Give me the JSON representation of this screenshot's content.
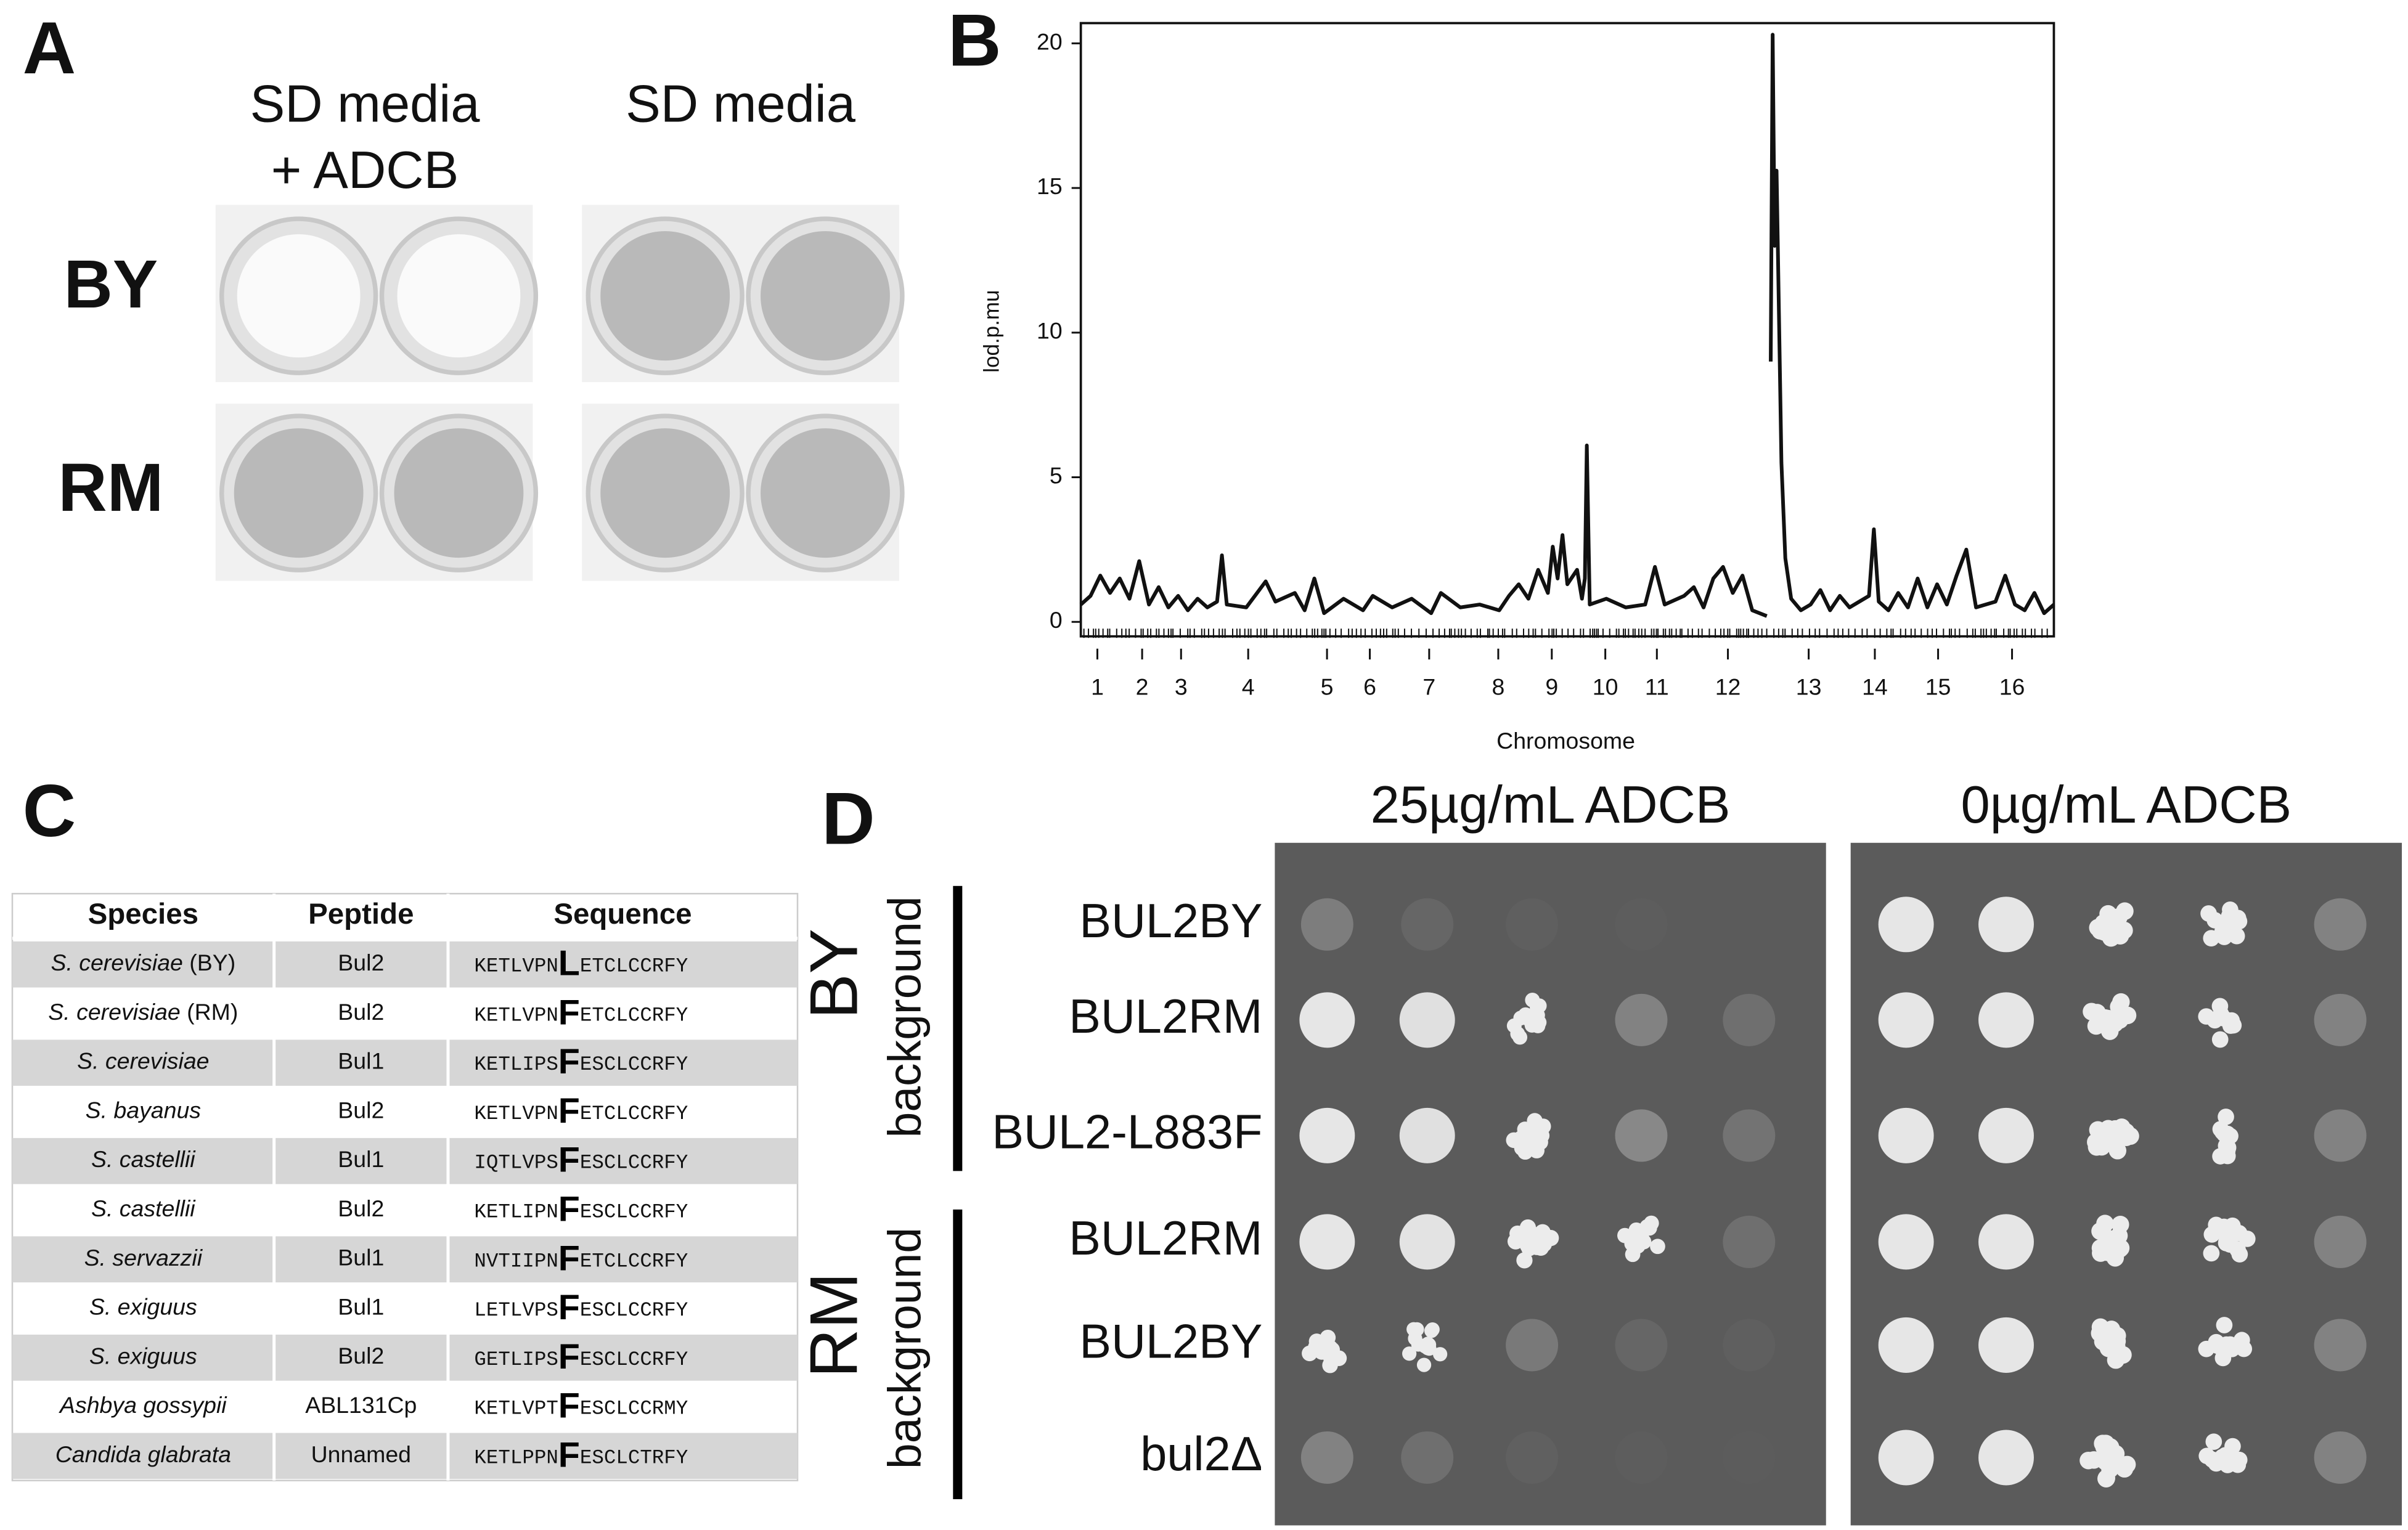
{
  "panel_a": {
    "letter": "A",
    "conditions": [
      {
        "lines": [
          "SD media",
          "+ ADCB"
        ]
      },
      {
        "lines": [
          "SD media"
        ]
      }
    ],
    "strains": [
      "BY",
      "RM"
    ]
  },
  "chart_data": {
    "type": "line",
    "panel_letter": "B",
    "x_label": "Chromosome",
    "y_label": "lod.p.mu",
    "x": [
      0,
      1,
      2,
      3,
      4,
      5,
      6,
      7,
      8,
      9,
      10,
      11,
      12,
      13,
      14,
      14.5,
      15,
      17,
      19,
      20,
      22,
      23,
      24,
      25,
      27,
      29,
      30,
      32,
      34,
      36,
      37,
      39,
      41,
      43,
      44,
      45,
      46,
      47,
      48,
      48.5,
      49,
      49.5,
      50,
      51,
      51.5,
      51.8,
      52,
      52.3,
      54,
      56,
      58,
      59,
      60,
      62,
      63,
      64,
      65,
      66,
      67,
      68,
      69,
      70.5,
      null,
      70.9,
      71.1,
      71.3,
      71.5,
      72.0,
      72.4,
      73.0,
      74,
      75,
      76,
      77,
      78,
      79,
      80,
      81,
      81.5,
      82,
      83,
      84,
      85,
      86,
      87,
      88,
      89,
      90,
      91,
      92,
      94,
      95,
      96,
      97,
      98,
      99,
      100
    ],
    "series": [
      {
        "color": "#111111",
        "values": [
          0.6,
          0.9,
          1.6,
          1.0,
          1.5,
          0.8,
          2.1,
          0.6,
          1.2,
          0.5,
          0.9,
          0.4,
          0.8,
          0.5,
          0.7,
          2.3,
          0.6,
          0.5,
          1.4,
          0.7,
          1.0,
          0.4,
          1.5,
          0.3,
          0.8,
          0.4,
          0.9,
          0.5,
          0.8,
          0.3,
          1.0,
          0.5,
          0.6,
          0.4,
          0.9,
          1.3,
          0.8,
          1.8,
          1.0,
          2.6,
          1.5,
          3.0,
          1.3,
          1.8,
          0.8,
          1.5,
          6.1,
          0.6,
          0.8,
          0.5,
          0.6,
          1.9,
          0.6,
          0.9,
          1.2,
          0.5,
          1.5,
          1.9,
          1.0,
          1.6,
          0.4,
          0.2,
          null,
          9.0,
          20.3,
          13,
          15.6,
          5.5,
          2.2,
          0.8,
          0.4,
          0.6,
          1.1,
          0.4,
          0.9,
          0.5,
          0.7,
          0.9,
          3.2,
          0.7,
          0.4,
          1.0,
          0.5,
          1.5,
          0.5,
          1.3,
          0.6,
          1.6,
          2.5,
          0.5,
          0.7,
          1.6,
          0.6,
          0.4,
          1.0,
          0.3,
          0.6
        ]
      }
    ],
    "xlim": [
      0,
      100
    ],
    "xticks": [
      {
        "value": 1.7,
        "label": "1"
      },
      {
        "value": 6.3,
        "label": "2"
      },
      {
        "value": 10.3,
        "label": "3"
      },
      {
        "value": 17.2,
        "label": "4"
      },
      {
        "value": 25.3,
        "label": "5"
      },
      {
        "value": 29.7,
        "label": "6"
      },
      {
        "value": 35.8,
        "label": "7"
      },
      {
        "value": 42.9,
        "label": "8"
      },
      {
        "value": 48.4,
        "label": "9"
      },
      {
        "value": 53.9,
        "label": "10"
      },
      {
        "value": 59.2,
        "label": "11"
      },
      {
        "value": 66.5,
        "label": "12"
      },
      {
        "value": 74.8,
        "label": "13"
      },
      {
        "value": 81.6,
        "label": "14"
      },
      {
        "value": 88.1,
        "label": "15"
      },
      {
        "value": 95.7,
        "label": "16"
      }
    ],
    "ylim": [
      -0.5,
      20.7
    ],
    "yticks": [
      0,
      5,
      10,
      15,
      20
    ],
    "grid": false
  },
  "panel_c": {
    "letter": "C",
    "table": {
      "header": [
        "Species",
        "Peptide",
        "Sequence"
      ],
      "rows": [
        {
          "species": "S. cerevisiae",
          "species_note": "(BY)",
          "peptide": "Bul2",
          "sequence_start": "KETLVPN",
          "residue": "L",
          "sequence_end": "ETCLCCRFY"
        },
        {
          "species": "S. cerevisiae",
          "species_note": "(RM)",
          "peptide": "Bul2",
          "sequence_start": "KETLVPN",
          "residue": "F",
          "sequence_end": "ETCLCCRFY"
        },
        {
          "species": "S. cerevisiae",
          "peptide": "Bul1",
          "sequence_start": "KETLIPS",
          "residue": "F",
          "sequence_end": "ESCLCCRFY"
        },
        {
          "species": "S. bayanus",
          "peptide": "Bul2",
          "sequence_start": "KETLVPN",
          "residue": "F",
          "sequence_end": "ETCLCCRFY"
        },
        {
          "species": "S. castellii",
          "peptide": "Bul1",
          "sequence_start": "IQTLVPS",
          "residue": "F",
          "sequence_end": "ESCLCCRFY"
        },
        {
          "species": "S. castellii",
          "peptide": "Bul2",
          "sequence_start": "KETLIPN",
          "residue": "F",
          "sequence_end": "ESCLCCRFY"
        },
        {
          "species": "S. servazzii",
          "peptide": "Bul1",
          "sequence_start": "NVTIIPN",
          "residue": "F",
          "sequence_end": "ETCLCCRFY"
        },
        {
          "species": "S. exiguus",
          "peptide": "Bul1",
          "sequence_start": "LETLVPS",
          "residue": "F",
          "sequence_end": "ESCLCCRFY"
        },
        {
          "species": "S. exiguus",
          "peptide": "Bul2",
          "sequence_start": "GETLIPS",
          "residue": "F",
          "sequence_end": "ESCLCCRFY"
        },
        {
          "species": "Ashbya gossypii",
          "peptide": "ABL131Cp",
          "sequence_start": "KETLVPT",
          "residue": "F",
          "sequence_end": "ESCLCCRMY"
        },
        {
          "species": "Candida glabrata",
          "peptide": "Unnamed",
          "sequence_start": "KETLPPN",
          "residue": "F",
          "sequence_end": "ESCLCTRFY"
        }
      ]
    }
  },
  "panel_d": {
    "letter": "D",
    "conditions": [
      "25µg/mL ADCB",
      "0µg/mL ADCB"
    ],
    "groups": [
      {
        "name": "BY",
        "suffix": "background",
        "strains": [
          "BUL2BY",
          "BUL2RM",
          "BUL2-L883F"
        ]
      },
      {
        "name": "RM",
        "suffix": "background",
        "strains": [
          "BUL2RM",
          "BUL2BY",
          "bul2Δ"
        ]
      }
    ]
  }
}
